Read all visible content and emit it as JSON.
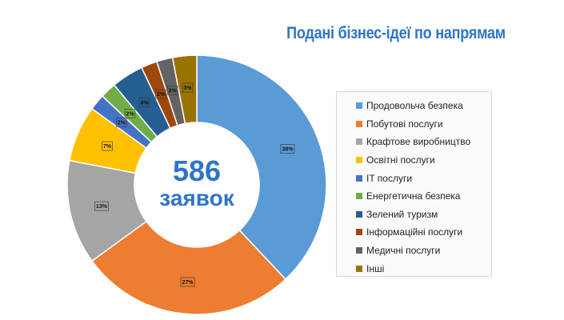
{
  "title": "Подані бізнес-ідеї по напрямам",
  "center": {
    "count": "586",
    "unit": "заявок"
  },
  "chart_data": {
    "type": "donut",
    "title": "Подані бізнес-ідеї по напрямам",
    "categories": [
      "Продовольча безпека",
      "Побутові послуги",
      "Крафтове виробництво",
      "Освітні послуги",
      "IT послуги",
      "Енергетична безпека",
      "Зелений туризм",
      "Інформаційні послуги",
      "Медичні послуги",
      "Інші"
    ],
    "values": [
      38,
      27,
      13,
      7,
      2,
      2,
      4,
      2,
      2,
      3
    ],
    "labels": [
      "38%",
      "27%",
      "13%",
      "7%",
      "2%",
      "2%",
      "4%",
      "2%",
      "2%",
      "3%"
    ],
    "colors": [
      "#5b9bd5",
      "#ed7d31",
      "#a5a5a5",
      "#ffc000",
      "#4472c4",
      "#70ad47",
      "#255e91",
      "#9e480e",
      "#636363",
      "#997300"
    ],
    "unit": "%",
    "legend_position": "right"
  }
}
